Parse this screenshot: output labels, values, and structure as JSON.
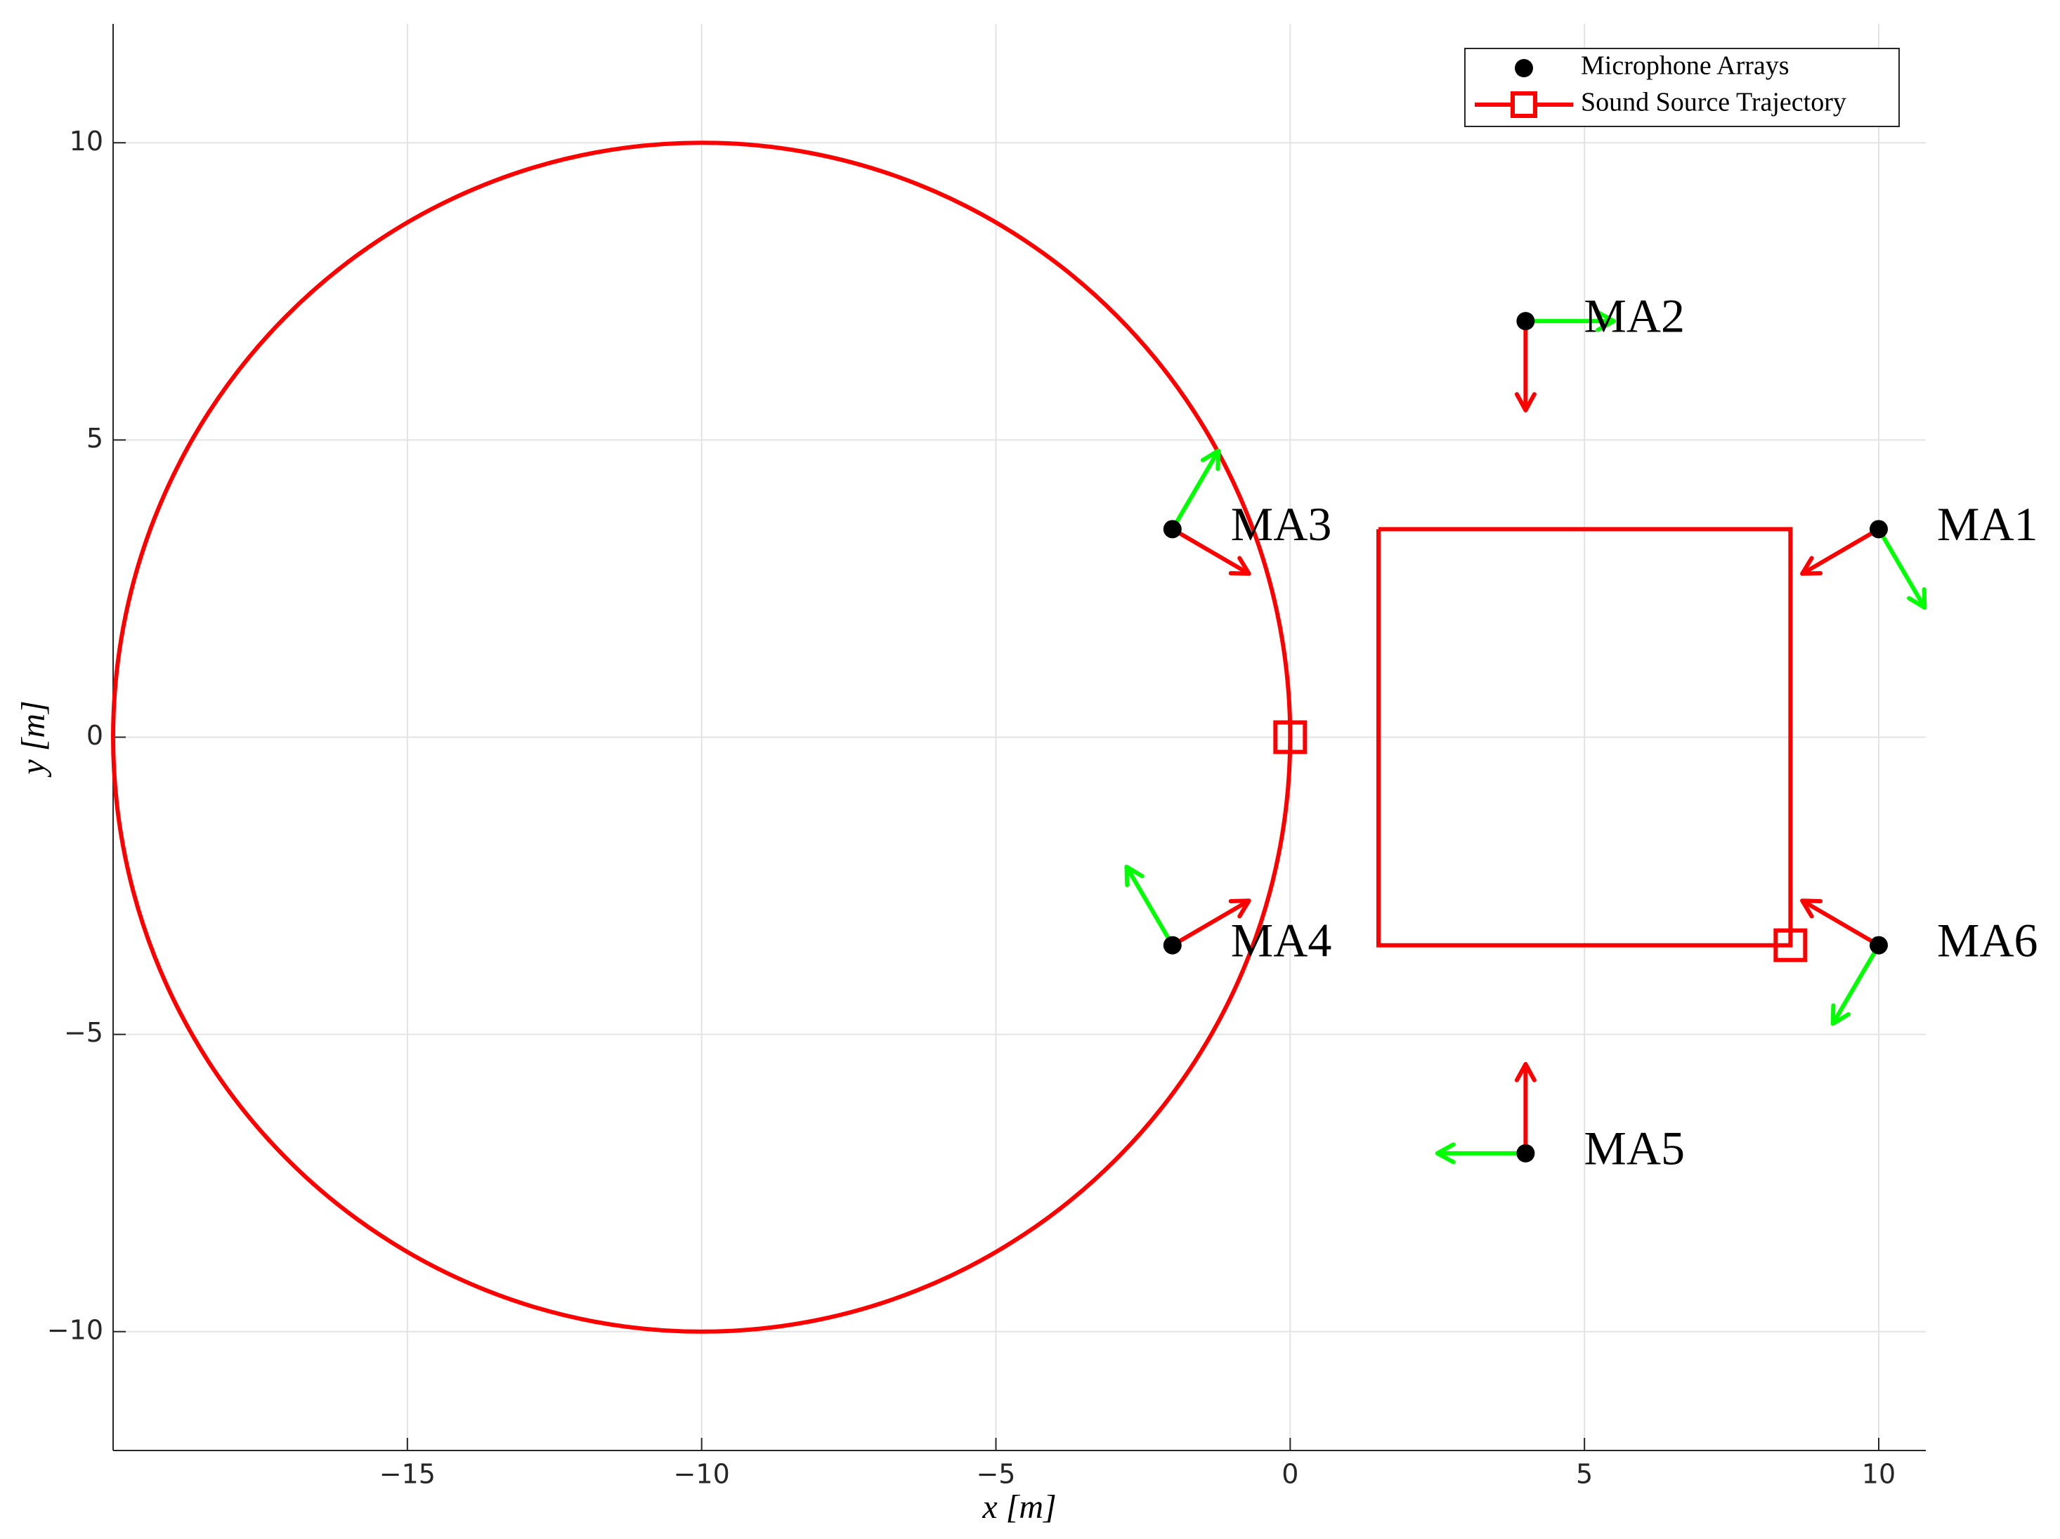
{
  "chart_data": {
    "type": "scatter",
    "xlabel": "x [m]",
    "ylabel": "y [m]",
    "xlim": [
      -20,
      10.8
    ],
    "ylim": [
      -12,
      12
    ],
    "xticks": [
      {
        "value": -15,
        "label": "−15"
      },
      {
        "value": -10,
        "label": "−10"
      },
      {
        "value": -5,
        "label": "−5"
      },
      0,
      5,
      10
    ],
    "yticks": [
      {
        "value": -10,
        "label": "−10"
      },
      {
        "value": -5,
        "label": "−5"
      },
      0,
      5,
      10
    ],
    "grid": true,
    "legend": "northeast",
    "microphones": {
      "name": "Microphone Arrays",
      "color": "#000000",
      "labels": [
        "MA1",
        "MA2",
        "MA3",
        "MA4",
        "MA5",
        "MA6"
      ],
      "x": [
        10,
        4,
        -2,
        -2,
        4,
        10
      ],
      "y": [
        3.5,
        7,
        3.5,
        -3.5,
        -7,
        -3.5
      ]
    },
    "arrows": [
      {
        "color": "#ff0000",
        "u": [
          -1.3,
          0,
          1.3,
          1.3,
          0,
          -1.3
        ],
        "v": [
          -0.75,
          -1.5,
          -0.75,
          0.75,
          1.5,
          0.75
        ]
      },
      {
        "color": "#00ff00",
        "u": [
          0.78,
          1.5,
          0.78,
          -0.78,
          -1.5,
          -0.78
        ],
        "v": [
          -1.32,
          0,
          1.32,
          1.32,
          0,
          -1.32
        ]
      }
    ],
    "trajectory": {
      "name": "Sound Source Trajectory",
      "color": "#ff0000",
      "circle": {
        "center": [
          -10,
          0
        ],
        "radius": 10
      },
      "square": {
        "x": [
          1.5,
          8.5,
          8.5,
          1.5,
          1.5
        ],
        "y": [
          3.5,
          3.5,
          -3.5,
          -3.5,
          3.5
        ]
      },
      "markers": {
        "x": [
          0,
          8.5
        ],
        "y": [
          0,
          -3.5
        ]
      }
    }
  }
}
